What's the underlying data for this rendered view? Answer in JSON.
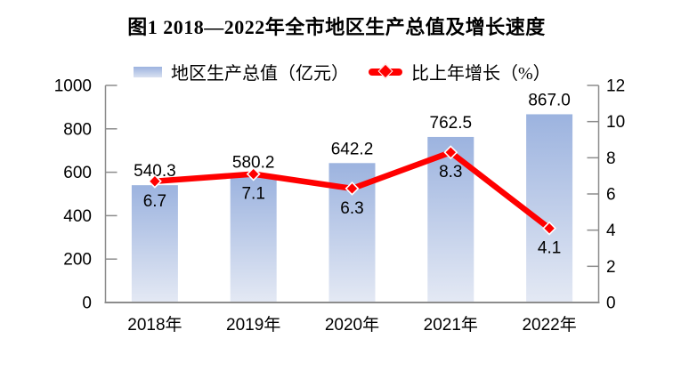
{
  "title": "图1 2018—2022年全市地区生产总值及增长速度",
  "legend": {
    "bar_label": "地区生产总值（亿元）",
    "line_label": "比上年增长（%）"
  },
  "colors": {
    "bar_gradient_top": "#9CB3DF",
    "bar_gradient_bottom": "#E4E9F4",
    "line": "#FF0000",
    "marker_fill": "#FF0000",
    "marker_border": "#FFFFFF",
    "axis": "#8C8C8C",
    "text": "#000000"
  },
  "chart_data": {
    "type": "bar+line",
    "categories": [
      "2018年",
      "2019年",
      "2020年",
      "2021年",
      "2022年"
    ],
    "series": [
      {
        "name": "地区生产总值（亿元）",
        "type": "bar",
        "axis": "left",
        "values": [
          540.3,
          580.2,
          642.2,
          762.5,
          867.0
        ],
        "labels": [
          "540.3",
          "580.2",
          "642.2",
          "762.5",
          "867.0"
        ]
      },
      {
        "name": "比上年增长（%）",
        "type": "line",
        "axis": "right",
        "values": [
          6.7,
          7.1,
          6.3,
          8.3,
          4.1
        ],
        "labels": [
          "6.7",
          "7.1",
          "6.3",
          "8.3",
          "4.1"
        ]
      }
    ],
    "left_axis": {
      "min": 0,
      "max": 1000,
      "step": 200,
      "tick_labels": [
        "0",
        "200",
        "400",
        "600",
        "800",
        "1000"
      ]
    },
    "right_axis": {
      "min": 0,
      "max": 12,
      "step": 2,
      "tick_labels": [
        "0",
        "2",
        "4",
        "6",
        "8",
        "10",
        "12"
      ]
    },
    "grid": false,
    "legend_position": "top-center",
    "title": "图1 2018—2022年全市地区生产总值及增长速度"
  }
}
